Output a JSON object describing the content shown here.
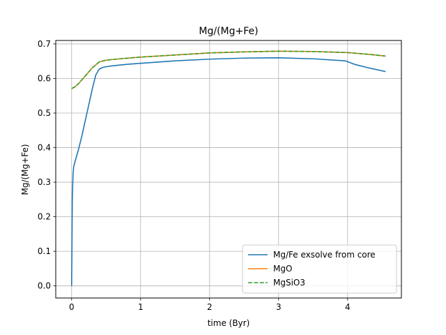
{
  "chart_data": {
    "type": "line",
    "title": "Mg/(Mg+Fe)",
    "xlabel": "time (Byr)",
    "ylabel": "Mg/(Mg+Fe)",
    "xlim": [
      -0.23,
      4.78
    ],
    "ylim": [
      -0.035,
      0.71
    ],
    "xticks": [
      0,
      1,
      2,
      3,
      4
    ],
    "xtick_labels": [
      "0",
      "1",
      "2",
      "3",
      "4"
    ],
    "yticks": [
      0.0,
      0.1,
      0.2,
      0.3,
      0.4,
      0.5,
      0.6,
      0.7
    ],
    "ytick_labels": [
      "0.0",
      "0.1",
      "0.2",
      "0.3",
      "0.4",
      "0.5",
      "0.6",
      "0.7"
    ],
    "grid": true,
    "legend_position": "lower-right",
    "series": [
      {
        "name": "Mg/Fe exsolve from core",
        "color": "#1f77b4",
        "dash": "solid",
        "x": [
          0.0,
          0.005,
          0.01,
          0.02,
          0.03,
          0.05,
          0.1,
          0.15,
          0.2,
          0.25,
          0.3,
          0.35,
          0.4,
          0.45,
          0.5,
          0.6,
          0.8,
          1.0,
          1.5,
          2.0,
          2.5,
          3.0,
          3.5,
          3.97,
          4.1,
          4.3,
          4.55
        ],
        "y": [
          0.0,
          0.12,
          0.25,
          0.32,
          0.345,
          0.36,
          0.395,
          0.435,
          0.48,
          0.525,
          0.57,
          0.61,
          0.627,
          0.632,
          0.634,
          0.637,
          0.641,
          0.644,
          0.651,
          0.656,
          0.659,
          0.66,
          0.657,
          0.651,
          0.641,
          0.631,
          0.62
        ]
      },
      {
        "name": "MgO",
        "color": "#ff7f0e",
        "dash": "solid",
        "x": [
          0.0,
          0.05,
          0.1,
          0.2,
          0.3,
          0.4,
          0.5,
          0.7,
          1.0,
          1.5,
          2.0,
          2.5,
          3.0,
          3.5,
          4.0,
          4.3,
          4.55
        ],
        "y": [
          0.571,
          0.576,
          0.585,
          0.608,
          0.631,
          0.648,
          0.653,
          0.657,
          0.662,
          0.668,
          0.674,
          0.677,
          0.679,
          0.678,
          0.675,
          0.67,
          0.665
        ]
      },
      {
        "name": "MgSiO3",
        "color": "#2ca02c",
        "dash": "dashed",
        "x": [
          0.0,
          0.05,
          0.1,
          0.2,
          0.3,
          0.4,
          0.5,
          0.7,
          1.0,
          1.5,
          2.0,
          2.5,
          3.0,
          3.5,
          4.0,
          4.3,
          4.55
        ],
        "y": [
          0.571,
          0.576,
          0.585,
          0.608,
          0.631,
          0.648,
          0.653,
          0.657,
          0.662,
          0.668,
          0.674,
          0.677,
          0.679,
          0.678,
          0.675,
          0.67,
          0.665
        ]
      }
    ]
  }
}
